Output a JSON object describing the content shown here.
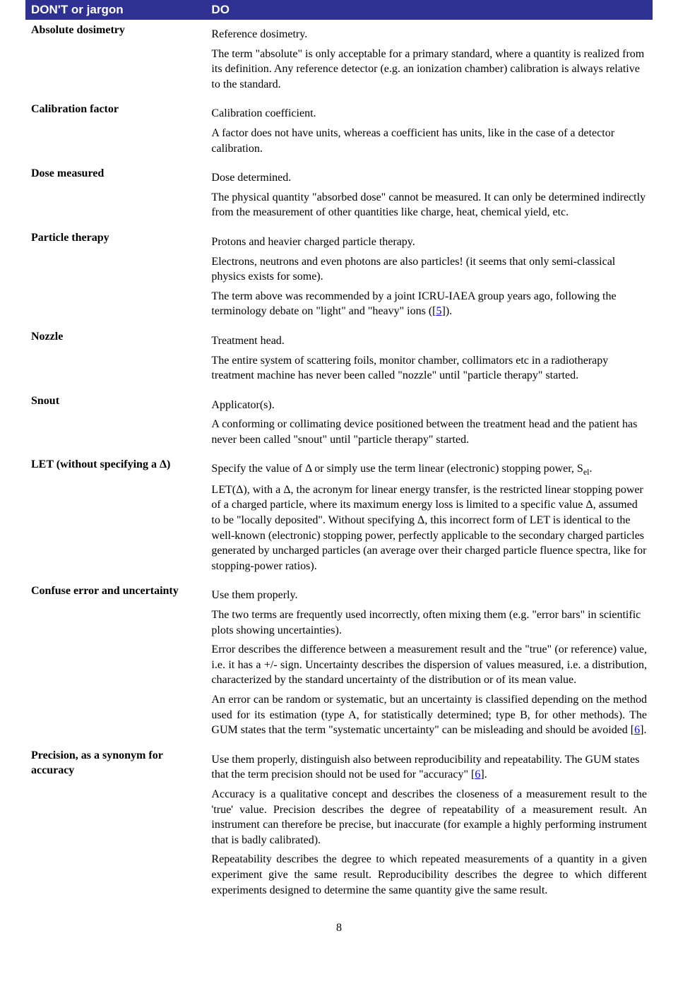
{
  "header": {
    "dont": "DON'T or jargon",
    "do": "DO"
  },
  "rows": {
    "absolute": {
      "left": "Absolute dosimetry",
      "do": "Reference dosimetry.",
      "p1": "The term \"absolute\" is only acceptable for a primary standard, where a quantity is realized from its definition. Any reference detector (e.g. an ionization chamber) calibration is always relative to the standard."
    },
    "calibration": {
      "left": "Calibration factor",
      "do": "Calibration coefficient.",
      "p1": "A factor does not have units, whereas a coefficient has units, like in the case of a detector calibration."
    },
    "dose": {
      "left": "Dose measured",
      "do": "Dose determined.",
      "p1": "The physical quantity \"absorbed dose\" cannot be measured. It can only be determined indirectly from the measurement of other quantities like charge, heat, chemical yield, etc."
    },
    "particle": {
      "left": "Particle therapy",
      "do": "Protons and heavier charged particle therapy.",
      "p1": "Electrons, neutrons and even photons are also particles! (it seems that only semi-classical physics exists for some).",
      "p2a": "The term above was recommended by a joint ICRU-IAEA group years ago, following the terminology debate on \"light\" and \"heavy\" ions ([",
      "p2b": "]).",
      "ref5": "5"
    },
    "nozzle": {
      "left": "Nozzle",
      "do": "Treatment head.",
      "p1": "The entire system of scattering foils, monitor chamber, collimators etc in a radiotherapy treatment machine has never been called \"nozzle\" until \"particle therapy\" started."
    },
    "snout": {
      "left": "Snout",
      "do": "Applicator(s).",
      "p1": "A conforming or collimating device positioned between the treatment head and the patient has never been called \"snout\" until \"particle therapy\" started."
    },
    "let": {
      "left": "LET (without specifying a Δ)",
      "do_a": "Specify the value of Δ or simply use the term linear (electronic) stopping power, S",
      "do_sub": "el",
      "do_c": ".",
      "p1": "LET(Δ), with a Δ, the acronym for linear energy transfer, is the restricted linear stopping power of a charged particle, where its maximum energy loss is limited to a specific value Δ, assumed to be \"locally deposited\". Without specifying Δ, this incorrect form of LET is identical to the well-known (electronic) stopping power, perfectly applicable to the secondary charged particles generated by uncharged particles (an average over their charged particle fluence spectra, like for stopping-power ratios)."
    },
    "confuse": {
      "left": "Confuse error and uncertainty",
      "do": "Use them properly.",
      "p1": "The two terms are frequently used incorrectly, often mixing them (e.g. \"error bars\" in scientific plots showing uncertainties).",
      "p2": "Error describes the difference between a measurement result and the \"true\" (or reference) value, i.e. it has a +/- sign. Uncertainty describes the dispersion of values measured, i.e. a distribution, characterized by the standard uncertainty of the distribution or of its mean value.",
      "p3a": "An error can be random or systematic, but an uncertainty is classified depending on the method used for its estimation (type A, for statistically determined; type B, for other methods). The GUM states that the term \"systematic uncertainty\" can be misleading and should be avoided [",
      "p3b": "].",
      "ref6": "6"
    },
    "precision": {
      "left": "Precision, as a synonym for accuracy",
      "do_a": "Use them properly, distinguish also between reproducibility and repeatability. The GUM states that the term precision should not be used for \"accuracy\" [",
      "do_b": "].",
      "ref6": "6",
      "p1": "Accuracy is a qualitative concept and describes the closeness of a measurement result to the 'true' value. Precision describes the degree of repeatability of a measurement result. An instrument can therefore be precise, but inaccurate (for example a highly performing instrument that is badly calibrated).",
      "p2": "Repeatability describes the degree to which repeated measurements of a quantity in a given experiment give the same result. Reproducibility describes the degree to which different experiments designed to determine the same quantity give the same result."
    }
  },
  "pagenum": "8"
}
